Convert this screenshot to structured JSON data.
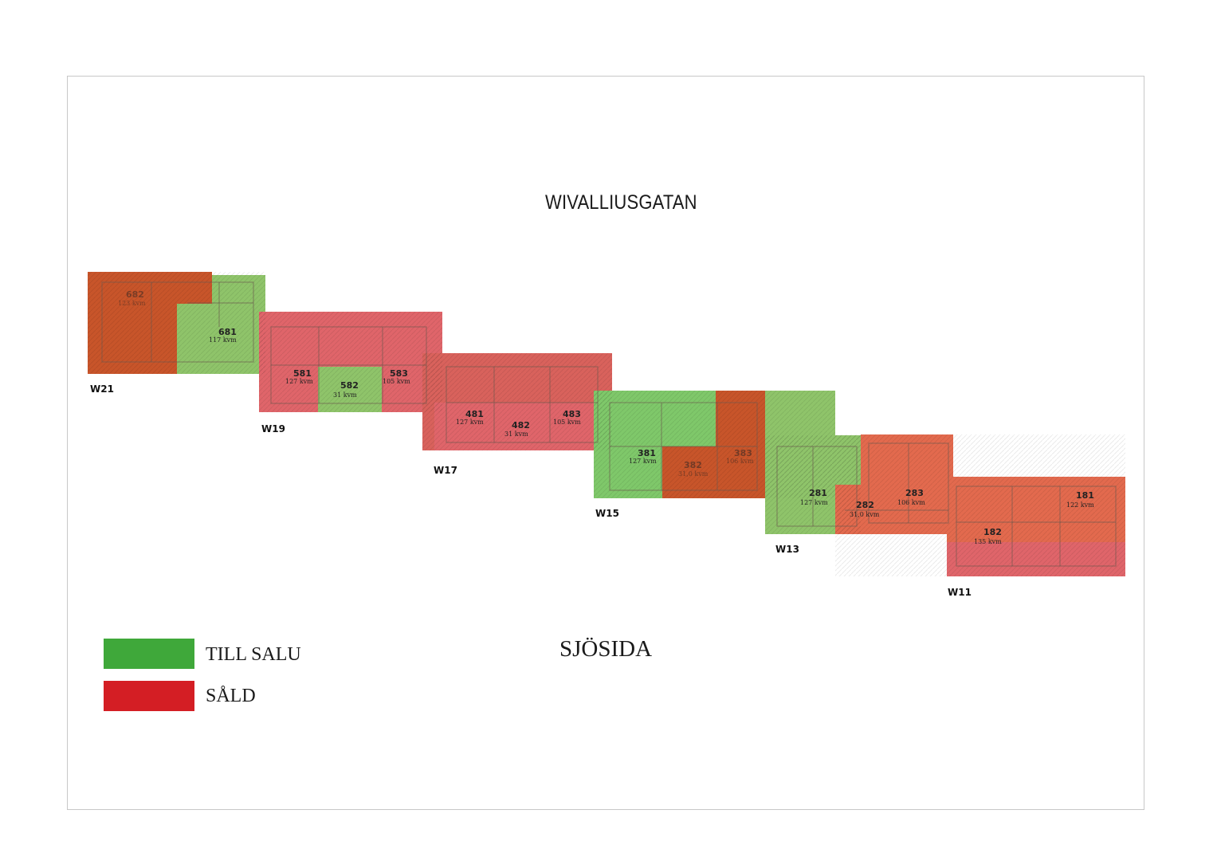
{
  "street_label": "WIVALLIUSGATAN",
  "sea_label": "SJÖSIDA",
  "legend": [
    {
      "key": "for_sale",
      "label": "TILL SALU",
      "color": "#3fa83a"
    },
    {
      "key": "sold",
      "label": "SÅLD",
      "color": "#d41e24"
    }
  ],
  "colors": {
    "for_sale_overlay": "#7fc86a",
    "sold_overlay": "#e0656a",
    "sold_dark_overlay": "#c8552a",
    "wall": "#6b5a4e"
  },
  "buildings": [
    {
      "id": "W21",
      "label": "W21"
    },
    {
      "id": "W19",
      "label": "W19"
    },
    {
      "id": "W17",
      "label": "W17"
    },
    {
      "id": "W15",
      "label": "W15"
    },
    {
      "id": "W13",
      "label": "W13"
    },
    {
      "id": "W11",
      "label": "W11"
    }
  ],
  "units": [
    {
      "number": "682",
      "area": "123 kvm",
      "status": "sold"
    },
    {
      "number": "681",
      "area": "117 kvm",
      "status": "for_sale"
    },
    {
      "number": "581",
      "area": "127 kvm",
      "status": "sold"
    },
    {
      "number": "582",
      "area": "31 kvm",
      "status": "for_sale"
    },
    {
      "number": "583",
      "area": "105 kvm",
      "status": "sold"
    },
    {
      "number": "481",
      "area": "127 kvm",
      "status": "sold"
    },
    {
      "number": "482",
      "area": "31 kvm",
      "status": "sold"
    },
    {
      "number": "483",
      "area": "105 kvm",
      "status": "sold"
    },
    {
      "number": "381",
      "area": "127 kvm",
      "status": "for_sale"
    },
    {
      "number": "382",
      "area": "31,0 kvm",
      "status": "sold"
    },
    {
      "number": "383",
      "area": "106 kvm",
      "status": "sold"
    },
    {
      "number": "281",
      "area": "127 kvm",
      "status": "for_sale"
    },
    {
      "number": "282",
      "area": "31,0 kvm",
      "status": "sold"
    },
    {
      "number": "283",
      "area": "106 kvm",
      "status": "sold"
    },
    {
      "number": "181",
      "area": "122 kvm",
      "status": "sold"
    },
    {
      "number": "182",
      "area": "135 kvm",
      "status": "sold"
    }
  ]
}
